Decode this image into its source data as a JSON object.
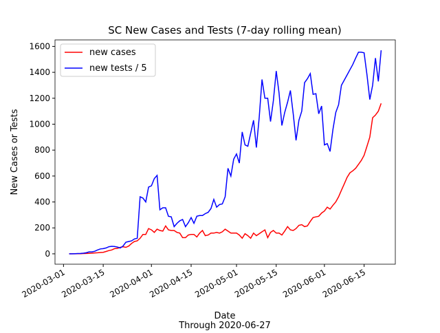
{
  "chart_data": {
    "type": "line",
    "title": "SC New Cases and Tests (7-day rolling mean)",
    "xlabel": "Date",
    "xlabel_note": "Through 2020-06-27",
    "ylabel": "New Cases or Tests",
    "x_start": "2020-03-03",
    "xlim": [
      "2020-02-27",
      "2020-06-26"
    ],
    "xticks": [
      "2020-03-01",
      "2020-03-15",
      "2020-04-01",
      "2020-04-15",
      "2020-05-01",
      "2020-05-15",
      "2020-06-01",
      "2020-06-15"
    ],
    "ylim": [
      -80,
      1650
    ],
    "yticks": [
      0,
      200,
      400,
      600,
      800,
      1000,
      1200,
      1400,
      1600
    ],
    "legend": "upper left",
    "series": [
      {
        "name": "new cases",
        "color": "#ff0000",
        "values": [
          0,
          0,
          0,
          1,
          1,
          2,
          3,
          4,
          5,
          7,
          8,
          10,
          12,
          18,
          25,
          30,
          40,
          42,
          50,
          55,
          50,
          60,
          80,
          95,
          100,
          120,
          150,
          150,
          195,
          185,
          165,
          190,
          180,
          175,
          215,
          185,
          180,
          180,
          165,
          160,
          125,
          125,
          145,
          150,
          150,
          130,
          160,
          180,
          140,
          145,
          160,
          160,
          165,
          160,
          170,
          190,
          175,
          160,
          160,
          160,
          145,
          120,
          155,
          140,
          120,
          160,
          140,
          155,
          170,
          185,
          125,
          165,
          180,
          160,
          160,
          145,
          175,
          210,
          185,
          180,
          195,
          220,
          225,
          210,
          215,
          250,
          280,
          285,
          290,
          315,
          330,
          360,
          345,
          375,
          400,
          440,
          490,
          540,
          590,
          625,
          640,
          660,
          690,
          720,
          760,
          830,
          900,
          1050,
          1070,
          1100,
          1160
        ]
      },
      {
        "name": "new tests / 5",
        "color": "#0000ff",
        "values": [
          0,
          0,
          1,
          2,
          3,
          5,
          8,
          15,
          15,
          20,
          30,
          38,
          40,
          45,
          55,
          58,
          57,
          52,
          45,
          60,
          90,
          95,
          100,
          115,
          120,
          440,
          430,
          400,
          515,
          525,
          580,
          605,
          340,
          355,
          355,
          290,
          285,
          210,
          235,
          255,
          265,
          210,
          240,
          280,
          235,
          290,
          295,
          295,
          310,
          320,
          350,
          420,
          360,
          380,
          385,
          440,
          660,
          600,
          730,
          770,
          700,
          940,
          840,
          830,
          930,
          1030,
          820,
          1050,
          1345,
          1200,
          1200,
          1020,
          1180,
          1410,
          1240,
          990,
          1090,
          1170,
          1260,
          1080,
          875,
          1030,
          1100,
          1320,
          1350,
          1390,
          1230,
          1235,
          1080,
          1140,
          840,
          850,
          790,
          960,
          1090,
          1150,
          1300,
          1340,
          1380,
          1420,
          1460,
          1510,
          1555,
          1555,
          1550,
          1380,
          1190,
          1300,
          1510,
          1330,
          1570
        ]
      }
    ]
  }
}
